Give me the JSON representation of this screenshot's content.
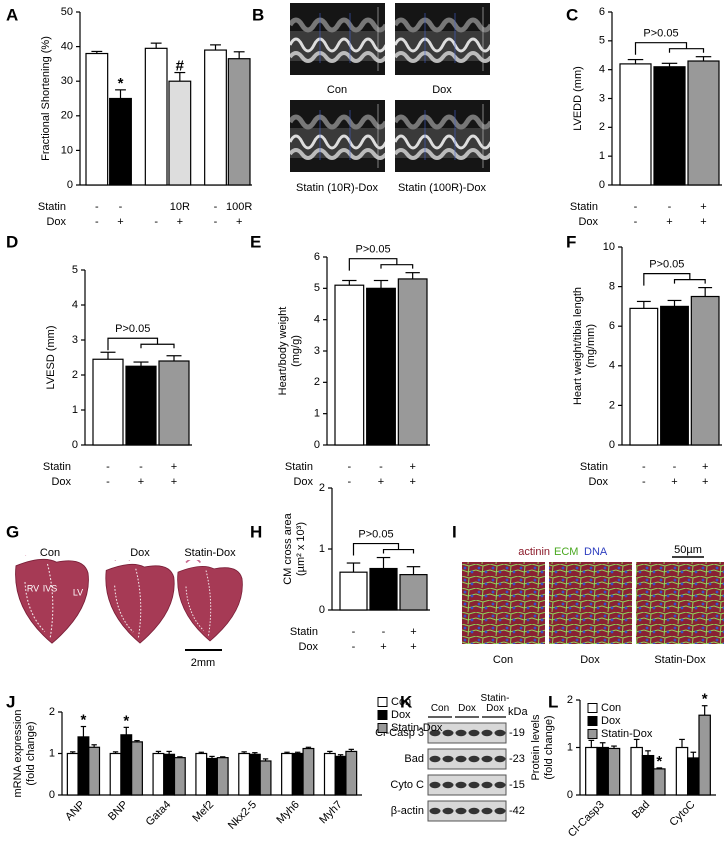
{
  "chart_data": [
    {
      "panel": "A",
      "type": "bar",
      "ylabel": [
        "Fractional Shortening (%)"
      ],
      "ylim": [
        0,
        50
      ],
      "yticks": [
        0,
        10,
        20,
        30,
        40,
        50
      ],
      "values": [
        38,
        25,
        39.5,
        30,
        39,
        36.5
      ],
      "errors": [
        0.6,
        2.5,
        1.5,
        2.5,
        1.5,
        2
      ],
      "colors": [
        "#ffffff",
        "#000000",
        "#ffffff",
        "#dddddd",
        "#ffffff",
        "#999999"
      ],
      "bar_labels": [
        null,
        "*",
        null,
        "#",
        null,
        null
      ],
      "rows": [
        {
          "label": "Statin",
          "values": [
            "-",
            "-",
            null,
            "10R",
            "-",
            "100R"
          ]
        },
        {
          "label": "Dox",
          "values": [
            "-",
            "+",
            "-",
            "+",
            "-",
            "+"
          ]
        }
      ]
    },
    {
      "panel": "C",
      "type": "bar",
      "ylabel": [
        "LVEDD (mm)"
      ],
      "ylim": [
        0,
        6
      ],
      "yticks": [
        0,
        1,
        2,
        3,
        4,
        5,
        6
      ],
      "values": [
        4.2,
        4.1,
        4.3
      ],
      "errors": [
        0.15,
        0.12,
        0.15
      ],
      "colors": [
        "#ffffff",
        "#000000",
        "#999999"
      ],
      "p_label": "P>0.05",
      "rows": [
        {
          "label": "Statin",
          "values": [
            "-",
            "-",
            "+"
          ]
        },
        {
          "label": "Dox",
          "values": [
            "-",
            "+",
            "+"
          ]
        }
      ]
    },
    {
      "panel": "D",
      "type": "bar",
      "ylabel": [
        "LVESD (mm)"
      ],
      "ylim": [
        0,
        5
      ],
      "yticks": [
        0,
        1,
        2,
        3,
        4,
        5
      ],
      "values": [
        2.45,
        2.25,
        2.4
      ],
      "errors": [
        0.2,
        0.12,
        0.15
      ],
      "colors": [
        "#ffffff",
        "#000000",
        "#999999"
      ],
      "p_label": "P>0.05",
      "rows": [
        {
          "label": "Statin",
          "values": [
            "-",
            "-",
            "+"
          ]
        },
        {
          "label": "Dox",
          "values": [
            "-",
            "+",
            "+"
          ]
        }
      ]
    },
    {
      "panel": "E",
      "type": "bar",
      "ylabel": [
        "Heart/body weight",
        "(mg/g)"
      ],
      "ylim": [
        0,
        6
      ],
      "yticks": [
        0,
        1,
        2,
        3,
        4,
        5,
        6
      ],
      "values": [
        5.1,
        5.0,
        5.3
      ],
      "errors": [
        0.15,
        0.25,
        0.2
      ],
      "colors": [
        "#ffffff",
        "#000000",
        "#999999"
      ],
      "p_label": "P>0.05",
      "rows": [
        {
          "label": "Statin",
          "values": [
            "-",
            "-",
            "+"
          ]
        },
        {
          "label": "Dox",
          "values": [
            "-",
            "+",
            "+"
          ]
        }
      ]
    },
    {
      "panel": "F",
      "type": "bar",
      "ylabel": [
        "Heart weight/tibia length",
        "(mg/mm)"
      ],
      "ylim": [
        0,
        10
      ],
      "yticks": [
        0,
        2,
        4,
        6,
        8,
        10
      ],
      "values": [
        6.9,
        7.0,
        7.5
      ],
      "errors": [
        0.35,
        0.3,
        0.45
      ],
      "colors": [
        "#ffffff",
        "#000000",
        "#999999"
      ],
      "p_label": "P>0.05",
      "rows": [
        {
          "label": "Statin",
          "values": [
            "-",
            "-",
            "+"
          ]
        },
        {
          "label": "Dox",
          "values": [
            "-",
            "+",
            "+"
          ]
        }
      ]
    },
    {
      "panel": "H",
      "type": "bar",
      "ylabel": [
        "CM cross area",
        "(µm² x 10³)"
      ],
      "ylim": [
        0,
        2
      ],
      "yticks": [
        0,
        1,
        2
      ],
      "values": [
        0.62,
        0.68,
        0.58
      ],
      "errors": [
        0.15,
        0.18,
        0.13
      ],
      "colors": [
        "#ffffff",
        "#000000",
        "#999999"
      ],
      "p_label": "P>0.05",
      "rows": [
        {
          "label": "Statin",
          "values": [
            "-",
            "-",
            "+"
          ]
        },
        {
          "label": "Dox",
          "values": [
            "-",
            "+",
            "+"
          ]
        }
      ]
    },
    {
      "panel": "J",
      "type": "bar",
      "ylabel": [
        "mRNA expression",
        "(fold change)"
      ],
      "ylim": [
        0,
        2
      ],
      "yticks": [
        0,
        1,
        2
      ],
      "categories": [
        "ANP",
        "BNP",
        "Gata4",
        "Mef2",
        "Nkx2-5",
        "Myh6",
        "Myh7"
      ],
      "series": [
        {
          "name": "Con",
          "color": "#ffffff",
          "values": [
            1,
            1,
            1,
            1,
            1,
            1,
            1
          ],
          "errors": [
            0.04,
            0.04,
            0.05,
            0.03,
            0.04,
            0.03,
            0.05
          ]
        },
        {
          "name": "Dox",
          "color": "#000000",
          "values": [
            1.4,
            1.45,
            0.98,
            0.88,
            0.98,
            1.0,
            0.93
          ],
          "errors": [
            0.25,
            0.18,
            0.07,
            0.05,
            0.04,
            0.03,
            0.04
          ],
          "bar_labels": [
            "*",
            "*",
            null,
            null,
            null,
            null,
            null
          ]
        },
        {
          "name": "Statin-Dox",
          "color": "#999999",
          "values": [
            1.15,
            1.28,
            0.9,
            0.9,
            0.82,
            1.12,
            1.05
          ],
          "errors": [
            0.06,
            0.03,
            0.02,
            0.02,
            0.05,
            0.03,
            0.05
          ]
        }
      ]
    },
    {
      "panel": "L",
      "type": "bar",
      "ylabel": [
        "Protein levels",
        "(fold change)"
      ],
      "ylim": [
        0,
        2
      ],
      "yticks": [
        0,
        1,
        2
      ],
      "categories": [
        "Cl-Casp3",
        "Bad",
        "CytoC"
      ],
      "series": [
        {
          "name": "Con",
          "color": "#ffffff",
          "values": [
            1,
            1,
            1
          ],
          "errors": [
            0.15,
            0.17,
            0.17
          ]
        },
        {
          "name": "Dox",
          "color": "#000000",
          "values": [
            1.0,
            0.83,
            0.78
          ],
          "errors": [
            0.1,
            0.1,
            0.12
          ]
        },
        {
          "name": "Statin-Dox",
          "color": "#999999",
          "values": [
            0.98,
            0.55,
            1.68
          ],
          "errors": [
            0.05,
            0.02,
            0.2
          ],
          "bar_labels": [
            null,
            "*",
            "*"
          ]
        }
      ]
    }
  ],
  "echo": {
    "panel": "B",
    "labels": [
      "Con",
      "Dox",
      "Statin (10R)-Dox",
      "Statin (100R)-Dox"
    ]
  },
  "histology": {
    "panel": "G",
    "labels": [
      "Con",
      "Dox",
      "Statin-Dox"
    ],
    "regions": [
      "RV",
      "IVS",
      "LV"
    ],
    "scale_bar": "2mm"
  },
  "immunostaining": {
    "panel": "I",
    "stains": [
      "actinin",
      "ECM",
      "DNA"
    ],
    "labels": [
      "Con",
      "Dox",
      "Statin-Dox"
    ],
    "scale_bar": "50µm"
  },
  "western_blot": {
    "panel": "K",
    "lanes": [
      "Con",
      "Dox",
      "Statin-Dox"
    ],
    "unit": "kDa",
    "rows": [
      {
        "label": "Cl-Casp 3",
        "size": "-19"
      },
      {
        "label": "Bad",
        "size": "-23"
      },
      {
        "label": "Cyto C",
        "size": "-15"
      },
      {
        "label": "β-actin",
        "size": "-42"
      }
    ]
  }
}
